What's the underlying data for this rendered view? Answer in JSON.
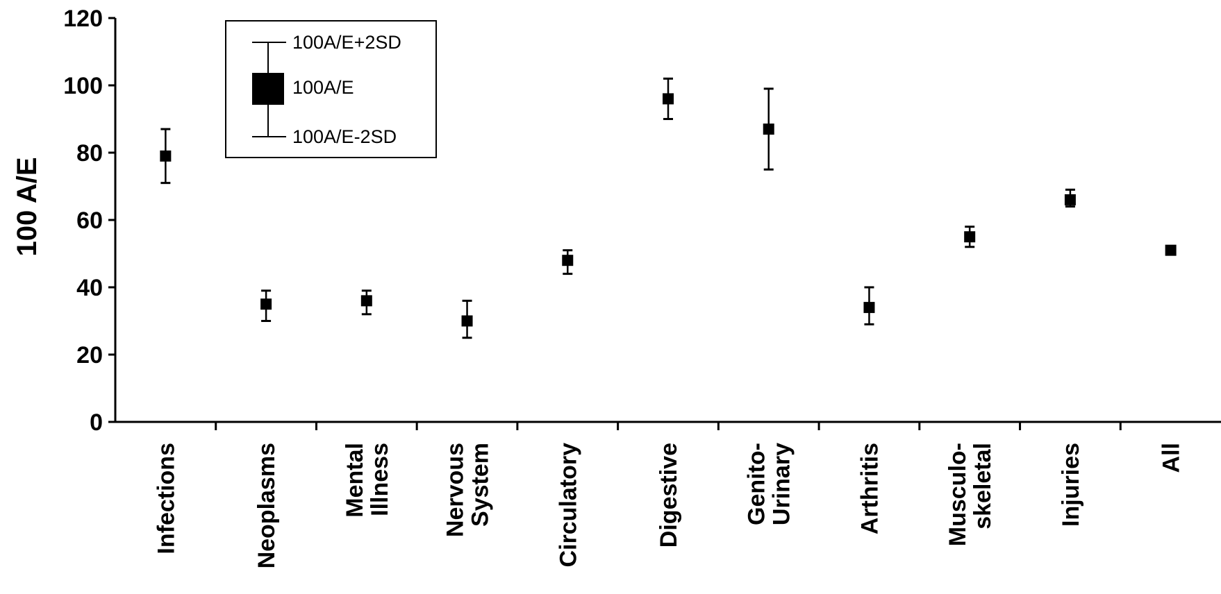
{
  "chart_data": {
    "type": "scatter",
    "title": "",
    "xlabel": "",
    "ylabel": "100 A/E",
    "ylim": [
      0,
      120
    ],
    "yticks": [
      0,
      20,
      40,
      60,
      80,
      100,
      120
    ],
    "grid": false,
    "categories": [
      [
        "Infections"
      ],
      [
        "Neoplasms"
      ],
      [
        "Mental",
        "Illness"
      ],
      [
        "Nervous",
        "System"
      ],
      [
        "Circulatory"
      ],
      [
        "Digestive"
      ],
      [
        "Genito-",
        "Urinary"
      ],
      [
        "Arthritis"
      ],
      [
        "Musculo-",
        "skeletal"
      ],
      [
        "Injuries"
      ],
      [
        "All"
      ]
    ],
    "series": [
      {
        "values": [
          79,
          35,
          36,
          30,
          48,
          96,
          87,
          34,
          55,
          66,
          51
        ],
        "upper": [
          87,
          39,
          39,
          36,
          51,
          102,
          99,
          40,
          58,
          69,
          52
        ],
        "lower": [
          71,
          30,
          32,
          25,
          44,
          90,
          75,
          29,
          52,
          64,
          50
        ]
      }
    ],
    "legend": {
      "placement": "top-left",
      "items": [
        "100A/E+2SD",
        "100A/E",
        "100A/E-2SD"
      ]
    },
    "colors": {
      "marker": "#000000",
      "axis": "#000000"
    }
  }
}
